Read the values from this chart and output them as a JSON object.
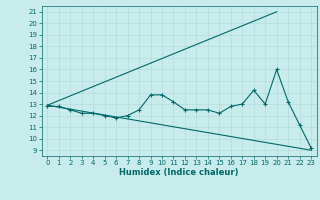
{
  "xlabel": "Humidex (Indice chaleur)",
  "background_color": "#c8ecec",
  "grid_color": "#b0d8d8",
  "line_color": "#006868",
  "xlim": [
    -0.5,
    23.5
  ],
  "ylim": [
    8.5,
    21.5
  ],
  "xticks": [
    0,
    1,
    2,
    3,
    4,
    5,
    6,
    7,
    8,
    9,
    10,
    11,
    12,
    13,
    14,
    15,
    16,
    17,
    18,
    19,
    20,
    21,
    22,
    23
  ],
  "yticks": [
    9,
    10,
    11,
    12,
    13,
    14,
    15,
    16,
    17,
    18,
    19,
    20,
    21
  ],
  "line_upper": {
    "x": [
      0,
      20
    ],
    "y": [
      12.9,
      21.0
    ]
  },
  "line_lower": {
    "x": [
      0,
      23
    ],
    "y": [
      12.9,
      9.0
    ]
  },
  "line_middle": {
    "x": [
      0,
      1,
      2,
      3,
      4,
      5,
      6,
      7,
      8,
      9,
      10,
      11,
      12,
      13,
      14,
      15,
      16,
      17,
      18,
      19,
      20,
      21,
      22,
      23
    ],
    "y": [
      12.8,
      12.8,
      12.5,
      12.2,
      12.2,
      12.0,
      11.8,
      12.0,
      12.5,
      13.8,
      13.8,
      13.2,
      12.5,
      12.5,
      12.5,
      12.2,
      12.8,
      13.0,
      14.2,
      13.0,
      16.0,
      13.2,
      11.2,
      9.2
    ]
  },
  "tick_fontsize": 5,
  "xlabel_fontsize": 6,
  "linewidth": 0.8,
  "markersize": 3,
  "markeredgewidth": 0.8
}
